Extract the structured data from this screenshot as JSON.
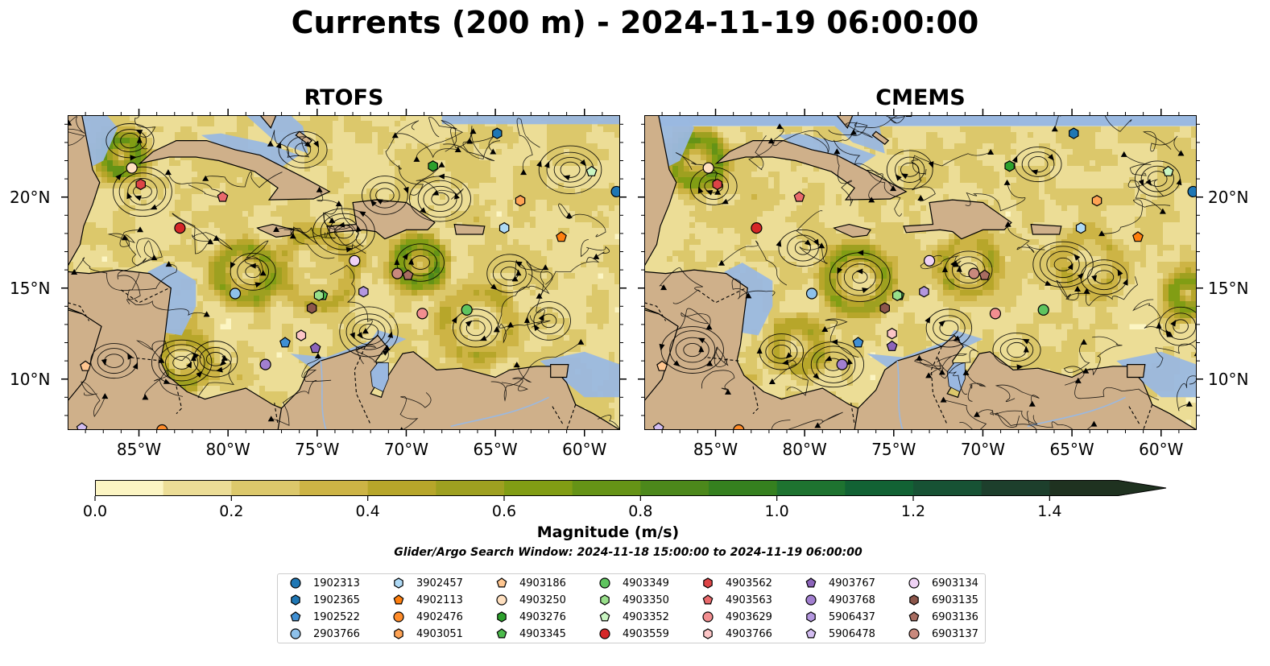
{
  "title": "Currents (200 m) - 2024-11-19 06:00:00",
  "panels": [
    {
      "title": "RTOFS"
    },
    {
      "title": "CMEMS"
    }
  ],
  "chart_data": {
    "type": "heatmap",
    "title": "Currents (200 m) - 2024-11-19 06:00:00",
    "panels": [
      "RTOFS",
      "CMEMS"
    ],
    "x_axis": {
      "range": [
        -89,
        -58
      ],
      "ticks": [
        -85,
        -80,
        -75,
        -70,
        -65,
        -60
      ],
      "tick_labels": [
        "85°W",
        "80°W",
        "75°W",
        "70°W",
        "65°W",
        "60°W"
      ]
    },
    "y_axis": {
      "range": [
        7.2,
        24.5
      ],
      "ticks": [
        10,
        15,
        20
      ],
      "tick_labels": [
        "10°N",
        "15°N",
        "20°N"
      ]
    },
    "colorbar": {
      "label": "Magnitude (m/s)",
      "range": [
        0,
        1.5
      ],
      "levels": [
        0,
        0.1,
        0.2,
        0.3,
        0.4,
        0.5,
        0.6,
        0.7,
        0.8,
        0.9,
        1.0,
        1.1,
        1.2,
        1.3,
        1.4,
        1.5
      ],
      "ticks": [
        0.0,
        0.2,
        0.4,
        0.6,
        0.8,
        1.0,
        1.2,
        1.4
      ],
      "tick_labels": [
        "0.0",
        "0.2",
        "0.4",
        "0.6",
        "0.8",
        "1.0",
        "1.2",
        "1.4"
      ],
      "colors": [
        "#fcf5c3",
        "#ecdd96",
        "#dcc86b",
        "#cdb445",
        "#b7a62a",
        "#9ea020",
        "#819d14",
        "#659316",
        "#4c881b",
        "#35801f",
        "#1e7330",
        "#126234",
        "#175234",
        "#1d3f2c",
        "#1f3220"
      ],
      "extend": "max"
    },
    "subtitle": "Glider/Argo Search Window: 2024-11-18 15:00:00 to 2024-11-19 06:00:00",
    "floats": [
      {
        "id": "1902313",
        "marker": "circle",
        "color": "#1f77b4",
        "lon": -58.2,
        "lat": 20.3
      },
      {
        "id": "1902365",
        "marker": "hexagon",
        "color": "#1f77b4",
        "lon": -64.9,
        "lat": 23.5
      },
      {
        "id": "1902522",
        "marker": "pentagon",
        "color": "#3f8fd3",
        "lon": -76.8,
        "lat": 12.0
      },
      {
        "id": "2903766",
        "marker": "circle",
        "color": "#8ec1ea",
        "lon": -79.6,
        "lat": 14.7
      },
      {
        "id": "3902457",
        "marker": "hexagon",
        "color": "#aed9f5",
        "lon": -64.5,
        "lat": 18.3
      },
      {
        "id": "4902113",
        "marker": "pentagon",
        "color": "#ff7f0e",
        "lon": -61.3,
        "lat": 17.8
      },
      {
        "id": "4902476",
        "marker": "circle",
        "color": "#ff8c2a",
        "lon": -83.7,
        "lat": 7.2
      },
      {
        "id": "4903051",
        "marker": "hexagon",
        "color": "#ffa354",
        "lon": -63.6,
        "lat": 19.8
      },
      {
        "id": "4903186",
        "marker": "pentagon",
        "color": "#ffc690",
        "lon": -88.0,
        "lat": 10.7
      },
      {
        "id": "4903250",
        "marker": "circle",
        "color": "#ffe0c0",
        "lon": -85.4,
        "lat": 21.6
      },
      {
        "id": "4903276",
        "marker": "hexagon",
        "color": "#2ca02c",
        "lon": -68.5,
        "lat": 21.7
      },
      {
        "id": "4903345",
        "marker": "pentagon",
        "color": "#4cbb4c",
        "lon": -74.7,
        "lat": 14.6
      },
      {
        "id": "4903349",
        "marker": "circle",
        "color": "#5fc45f",
        "lon": -66.6,
        "lat": 13.8
      },
      {
        "id": "4903350",
        "marker": "hexagon",
        "color": "#98df8a",
        "lon": -74.9,
        "lat": 14.6
      },
      {
        "id": "4903352",
        "marker": "pentagon",
        "color": "#c9f5c2",
        "lon": -59.6,
        "lat": 21.4
      },
      {
        "id": "4903559",
        "marker": "circle",
        "color": "#d62728",
        "lon": -82.7,
        "lat": 18.3
      },
      {
        "id": "4903562",
        "marker": "hexagon",
        "color": "#dd4446",
        "lon": -84.9,
        "lat": 20.7
      },
      {
        "id": "4903563",
        "marker": "pentagon",
        "color": "#ea6a6c",
        "lon": -80.3,
        "lat": 20.0
      },
      {
        "id": "4903629",
        "marker": "circle",
        "color": "#f28e90",
        "lon": -69.1,
        "lat": 13.6
      },
      {
        "id": "4903766",
        "marker": "hexagon",
        "color": "#fcc5c6",
        "lon": -75.9,
        "lat": 12.4
      },
      {
        "id": "4903767",
        "marker": "pentagon",
        "color": "#8c64ba",
        "lon": -75.1,
        "lat": 11.7
      },
      {
        "id": "4903768",
        "marker": "circle",
        "color": "#a27fd0",
        "lon": -77.9,
        "lat": 10.8
      },
      {
        "id": "5906437",
        "marker": "hexagon",
        "color": "#b497df",
        "lon": -72.4,
        "lat": 14.8
      },
      {
        "id": "5906478",
        "marker": "pentagon",
        "color": "#d3bdf1",
        "lon": -88.2,
        "lat": 7.3
      },
      {
        "id": "6903134",
        "marker": "circle",
        "color": "#efd2f5",
        "lon": -72.9,
        "lat": 16.5
      },
      {
        "id": "6903135",
        "marker": "hexagon",
        "color": "#8c564b",
        "lon": -75.3,
        "lat": 13.9
      },
      {
        "id": "6903136",
        "marker": "pentagon",
        "color": "#a86d61",
        "lon": -69.9,
        "lat": 15.7
      },
      {
        "id": "6903137",
        "marker": "circle",
        "color": "#c9897d",
        "lon": -70.5,
        "lat": 15.8
      }
    ]
  },
  "map_colors": {
    "ocean_shallow": "#9ab8e0",
    "land": "#cfb08a",
    "border": "#000000",
    "river": "#9ab8e0"
  }
}
